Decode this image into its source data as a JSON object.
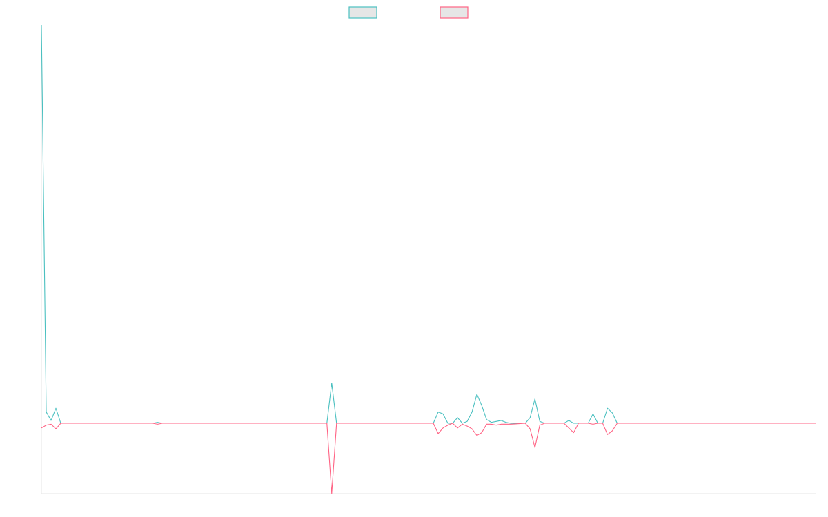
{
  "chart_data": {
    "type": "line",
    "title": "",
    "xlabel": "",
    "ylabel": "",
    "legend_position": "top-center",
    "grid": false,
    "x_count": 161,
    "ylim": [
      -75,
      425
    ],
    "series": [
      {
        "name": "",
        "color": "#4bc0c0",
        "fill": "#e6e6e6",
        "points": [
          [
            0,
            425
          ],
          [
            1,
            12
          ],
          [
            2,
            3
          ],
          [
            3,
            16
          ],
          [
            4,
            0
          ],
          [
            23,
            0
          ],
          [
            24,
            1
          ],
          [
            25,
            0
          ],
          [
            59,
            0
          ],
          [
            60,
            43
          ],
          [
            61,
            0
          ],
          [
            81,
            0
          ],
          [
            82,
            12
          ],
          [
            83,
            10
          ],
          [
            84,
            0
          ],
          [
            85,
            0
          ],
          [
            86,
            6
          ],
          [
            87,
            0
          ],
          [
            88,
            2
          ],
          [
            89,
            12
          ],
          [
            90,
            31
          ],
          [
            91,
            19
          ],
          [
            92,
            4
          ],
          [
            93,
            1
          ],
          [
            94,
            2
          ],
          [
            95,
            3
          ],
          [
            96,
            1
          ],
          [
            97,
            0
          ],
          [
            100,
            0
          ],
          [
            101,
            6
          ],
          [
            102,
            26
          ],
          [
            103,
            2
          ],
          [
            104,
            0
          ],
          [
            108,
            0
          ],
          [
            109,
            3
          ],
          [
            110,
            0
          ],
          [
            113,
            0
          ],
          [
            114,
            10
          ],
          [
            115,
            0
          ],
          [
            116,
            0
          ],
          [
            117,
            16
          ],
          [
            118,
            11
          ],
          [
            119,
            0
          ],
          [
            160,
            0
          ]
        ]
      },
      {
        "name": "",
        "color": "#ff6384",
        "fill": "#e6e6e6",
        "points": [
          [
            0,
            -5
          ],
          [
            1,
            -2
          ],
          [
            2,
            -1
          ],
          [
            3,
            -6
          ],
          [
            4,
            0
          ],
          [
            23,
            0
          ],
          [
            24,
            -1
          ],
          [
            25,
            0
          ],
          [
            59,
            0
          ],
          [
            60,
            -75
          ],
          [
            61,
            0
          ],
          [
            81,
            0
          ],
          [
            82,
            -11
          ],
          [
            83,
            -5
          ],
          [
            84,
            -2
          ],
          [
            85,
            0
          ],
          [
            86,
            -5
          ],
          [
            87,
            -1
          ],
          [
            88,
            -3
          ],
          [
            89,
            -6
          ],
          [
            90,
            -13
          ],
          [
            91,
            -10
          ],
          [
            92,
            -1
          ],
          [
            93,
            -1
          ],
          [
            94,
            -2
          ],
          [
            95,
            -1
          ],
          [
            96,
            -1
          ],
          [
            97,
            -1
          ],
          [
            100,
            0
          ],
          [
            101,
            -6
          ],
          [
            102,
            -26
          ],
          [
            103,
            -2
          ],
          [
            104,
            0
          ],
          [
            108,
            0
          ],
          [
            109,
            -5
          ],
          [
            110,
            -10
          ],
          [
            111,
            0
          ],
          [
            113,
            0
          ],
          [
            114,
            -1
          ],
          [
            115,
            0
          ],
          [
            116,
            0
          ],
          [
            117,
            -12
          ],
          [
            118,
            -8
          ],
          [
            119,
            0
          ],
          [
            160,
            0
          ]
        ]
      }
    ]
  }
}
